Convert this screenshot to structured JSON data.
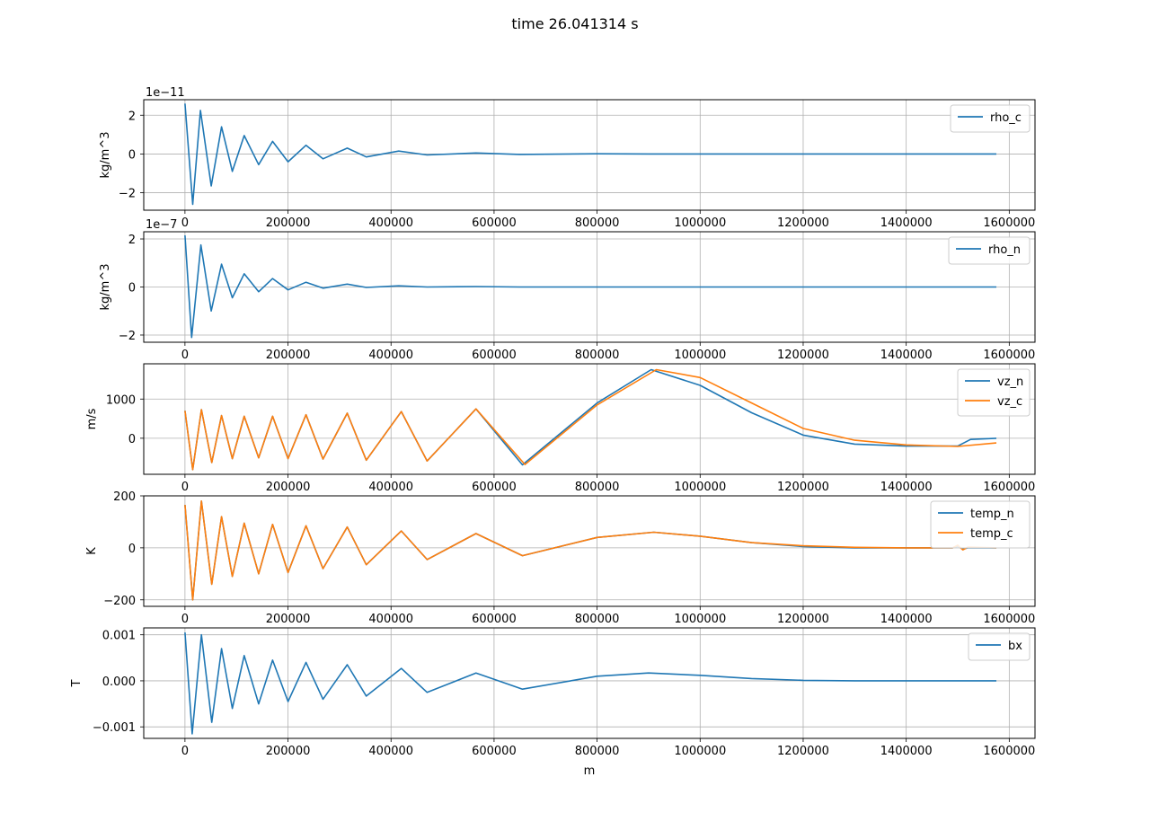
{
  "figure": {
    "suptitle": "time 26.041314 s",
    "xlabel": "m"
  },
  "colors": {
    "series1": "#1f77b4",
    "series2": "#ff7f0e",
    "grid": "#b0b0b0",
    "axes": "#000000",
    "legend_border": "#cccccc"
  },
  "chart_data": [
    {
      "type": "line",
      "ylabel": "kg/m^3",
      "offset_text": "1e−11",
      "xlim": [
        -80000,
        1650000
      ],
      "ylim": [
        -2.9,
        2.8
      ],
      "xticks": [
        0,
        200000,
        400000,
        600000,
        800000,
        1000000,
        1200000,
        1400000,
        1600000
      ],
      "xticklabels": [
        "0",
        "200000",
        "400000",
        "600000",
        "800000",
        "1000000",
        "1200000",
        "1400000",
        "1600000"
      ],
      "yticks": [
        -2,
        0,
        2
      ],
      "yticklabels": [
        "−2",
        "0",
        "2"
      ],
      "grid": true,
      "legend_loc": "upper right",
      "series": [
        {
          "name": "rho_c",
          "color": "#1f77b4",
          "x": [
            0,
            15000,
            30000,
            51000,
            71000,
            92000,
            115000,
            143000,
            170000,
            200000,
            235000,
            268000,
            315000,
            352000,
            415000,
            470000,
            565000,
            650000,
            800000,
            900000,
            1000000,
            1100000,
            1200000,
            1300000,
            1400000,
            1500000,
            1575000
          ],
          "y": [
            2.6,
            -2.6,
            2.25,
            -1.65,
            1.4,
            -0.9,
            0.95,
            -0.55,
            0.65,
            -0.4,
            0.45,
            -0.25,
            0.3,
            -0.15,
            0.15,
            -0.05,
            0.05,
            -0.02,
            0.01,
            0.0,
            0.0,
            0.0,
            0.0,
            0.0,
            0.0,
            0.0,
            0.0
          ]
        }
      ]
    },
    {
      "type": "line",
      "ylabel": "kg/m^3",
      "offset_text": "1e−7",
      "xlim": [
        -80000,
        1650000
      ],
      "ylim": [
        -2.3,
        2.3
      ],
      "xticks": [
        0,
        200000,
        400000,
        600000,
        800000,
        1000000,
        1200000,
        1400000,
        1600000
      ],
      "xticklabels": [
        "0",
        "200000",
        "400000",
        "600000",
        "800000",
        "1000000",
        "1200000",
        "1400000",
        "1600000"
      ],
      "yticks": [
        -2,
        0,
        2
      ],
      "yticklabels": [
        "−2",
        "0",
        "2"
      ],
      "grid": true,
      "legend_loc": "upper right",
      "series": [
        {
          "name": "rho_n",
          "color": "#1f77b4",
          "x": [
            0,
            13000,
            31000,
            51000,
            71000,
            92000,
            115000,
            143000,
            170000,
            200000,
            235000,
            268000,
            315000,
            352000,
            415000,
            470000,
            565000,
            650000,
            800000,
            1000000,
            1200000,
            1400000,
            1575000
          ],
          "y": [
            2.15,
            -2.1,
            1.75,
            -1.0,
            0.95,
            -0.45,
            0.55,
            -0.2,
            0.35,
            -0.12,
            0.2,
            -0.05,
            0.12,
            -0.02,
            0.05,
            0.0,
            0.02,
            0.0,
            0.0,
            0.0,
            0.0,
            0.0,
            0.0
          ]
        }
      ]
    },
    {
      "type": "line",
      "ylabel": "m/s",
      "offset_text": "",
      "xlim": [
        -80000,
        1650000
      ],
      "ylim": [
        -920,
        1900
      ],
      "xticks": [
        0,
        200000,
        400000,
        600000,
        800000,
        1000000,
        1200000,
        1400000,
        1600000
      ],
      "xticklabels": [
        "0",
        "200000",
        "400000",
        "600000",
        "800000",
        "1000000",
        "1200000",
        "1400000",
        "1600000"
      ],
      "yticks": [
        0,
        1000
      ],
      "yticklabels": [
        "0",
        "1000"
      ],
      "grid": true,
      "legend_loc": "upper right",
      "series": [
        {
          "name": "vz_n",
          "color": "#1f77b4",
          "x": [
            0,
            15000,
            32000,
            52000,
            71000,
            92000,
            115000,
            143000,
            170000,
            200000,
            235000,
            268000,
            315000,
            352000,
            420000,
            470000,
            565000,
            655000,
            800000,
            905000,
            1000000,
            1100000,
            1200000,
            1300000,
            1400000,
            1500000,
            1525000,
            1575000
          ],
          "y": [
            700,
            -800,
            730,
            -620,
            580,
            -520,
            560,
            -500,
            560,
            -520,
            600,
            -530,
            640,
            -560,
            680,
            -580,
            750,
            -680,
            900,
            1750,
            1350,
            650,
            80,
            -150,
            -200,
            -200,
            -30,
            0
          ]
        },
        {
          "name": "vz_c",
          "color": "#ff7f0e",
          "x": [
            0,
            15000,
            32000,
            52000,
            71000,
            92000,
            115000,
            143000,
            170000,
            200000,
            235000,
            268000,
            315000,
            352000,
            420000,
            470000,
            565000,
            660000,
            800000,
            915000,
            1000000,
            1100000,
            1200000,
            1300000,
            1400000,
            1500000,
            1575000
          ],
          "y": [
            700,
            -800,
            730,
            -620,
            580,
            -520,
            560,
            -500,
            560,
            -520,
            600,
            -530,
            640,
            -560,
            680,
            -580,
            750,
            -670,
            850,
            1750,
            1550,
            900,
            250,
            -50,
            -170,
            -210,
            -120
          ]
        }
      ]
    },
    {
      "type": "line",
      "ylabel": "K",
      "offset_text": "",
      "xlim": [
        -80000,
        1650000
      ],
      "ylim": [
        -225,
        200
      ],
      "xticks": [
        0,
        200000,
        400000,
        600000,
        800000,
        1000000,
        1200000,
        1400000,
        1600000
      ],
      "xticklabels": [
        "0",
        "200000",
        "400000",
        "600000",
        "800000",
        "1000000",
        "1200000",
        "1400000",
        "1600000"
      ],
      "yticks": [
        -200,
        0,
        200
      ],
      "yticklabels": [
        "−200",
        "0",
        "200"
      ],
      "grid": true,
      "legend_loc": "upper right",
      "series": [
        {
          "name": "temp_n",
          "color": "#1f77b4",
          "x": [
            0,
            15000,
            32000,
            52000,
            71000,
            92000,
            115000,
            143000,
            170000,
            200000,
            235000,
            268000,
            315000,
            352000,
            420000,
            470000,
            565000,
            655000,
            800000,
            910000,
            1000000,
            1100000,
            1200000,
            1300000,
            1400000,
            1490000,
            1500000,
            1510000,
            1520000,
            1575000
          ],
          "y": [
            165,
            -200,
            180,
            -140,
            120,
            -110,
            95,
            -100,
            90,
            -95,
            85,
            -80,
            80,
            -65,
            65,
            -45,
            55,
            -30,
            40,
            60,
            45,
            20,
            5,
            0,
            0,
            0,
            5,
            -5,
            0,
            0
          ]
        },
        {
          "name": "temp_c",
          "color": "#ff7f0e",
          "x": [
            0,
            15000,
            32000,
            52000,
            71000,
            92000,
            115000,
            143000,
            170000,
            200000,
            235000,
            268000,
            315000,
            352000,
            420000,
            470000,
            565000,
            655000,
            800000,
            910000,
            1000000,
            1100000,
            1200000,
            1300000,
            1400000,
            1490000,
            1500000,
            1510000,
            1520000,
            1575000
          ],
          "y": [
            165,
            -200,
            180,
            -140,
            120,
            -110,
            95,
            -100,
            90,
            -95,
            85,
            -80,
            80,
            -65,
            65,
            -45,
            55,
            -30,
            40,
            60,
            45,
            20,
            8,
            2,
            0,
            0,
            10,
            -8,
            3,
            0
          ]
        }
      ]
    },
    {
      "type": "line",
      "ylabel": "T",
      "offset_text": "",
      "xlim": [
        -80000,
        1650000
      ],
      "ylim": [
        -0.00125,
        0.00115
      ],
      "xticks": [
        0,
        200000,
        400000,
        600000,
        800000,
        1000000,
        1200000,
        1400000,
        1600000
      ],
      "xticklabels": [
        "0",
        "200000",
        "400000",
        "600000",
        "800000",
        "1000000",
        "1200000",
        "1400000",
        "1600000"
      ],
      "yticks": [
        -0.001,
        0.0,
        0.001
      ],
      "yticklabels": [
        "−0.001",
        "0.000",
        "0.001"
      ],
      "grid": true,
      "legend_loc": "upper right",
      "series": [
        {
          "name": "bx",
          "color": "#1f77b4",
          "x": [
            0,
            14000,
            32000,
            52000,
            71000,
            92000,
            115000,
            143000,
            170000,
            200000,
            235000,
            268000,
            315000,
            352000,
            420000,
            470000,
            565000,
            655000,
            800000,
            900000,
            1000000,
            1100000,
            1200000,
            1300000,
            1400000,
            1575000
          ],
          "y": [
            0.00105,
            -0.00115,
            0.001,
            -0.0009,
            0.0007,
            -0.0006,
            0.00055,
            -0.0005,
            0.00045,
            -0.00045,
            0.0004,
            -0.0004,
            0.00035,
            -0.00033,
            0.00027,
            -0.00025,
            0.00017,
            -0.00018,
            0.0001,
            0.00017,
            0.00012,
            5e-05,
            1e-05,
            0.0,
            0.0,
            0.0
          ]
        }
      ]
    }
  ]
}
